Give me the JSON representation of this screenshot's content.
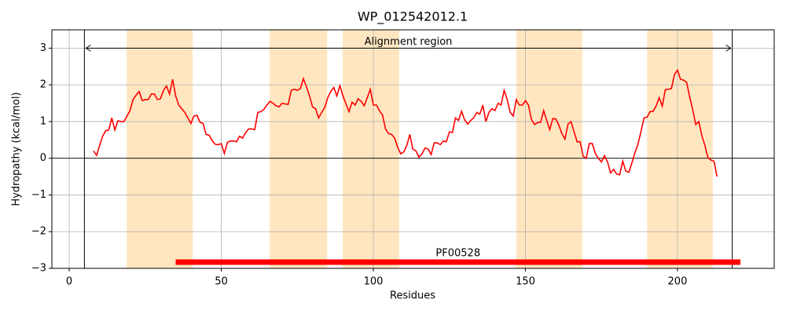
{
  "chart_data": {
    "type": "line",
    "title": "WP_012542012.1",
    "xlabel": "Residues",
    "ylabel": "Hydropathy (kcal/mol)",
    "xlim": [
      -5.7,
      231.8
    ],
    "ylim": [
      -3,
      3.5
    ],
    "xticks": [
      0,
      50,
      100,
      150,
      200
    ],
    "yticks": [
      {
        "value": -3,
        "label": "−3"
      },
      {
        "value": -2,
        "label": "−2"
      },
      {
        "value": -1,
        "label": "−1"
      },
      0,
      1,
      2,
      3
    ],
    "grid": true,
    "hline": 0,
    "regions": [
      [
        18.9,
        40.6
      ],
      [
        65.9,
        84.8
      ],
      [
        89.9,
        108.5
      ],
      [
        147,
        168.7
      ],
      [
        190,
        211.6
      ]
    ],
    "region_color": "#ffe6c0",
    "vlines": [
      5,
      218
    ],
    "alignment": {
      "text": "Alignment region",
      "x": [
        5,
        218
      ],
      "y": 3
    },
    "domain": {
      "label": "PF00528",
      "start": 35,
      "end": 220.7,
      "y": -2.83,
      "color": "#ff0000"
    },
    "x": [
      8,
      9,
      10,
      11,
      12,
      13,
      14,
      15,
      16,
      17,
      18,
      19,
      20,
      21,
      22,
      23,
      24,
      25,
      26,
      27,
      28,
      29,
      30,
      31,
      32,
      33,
      34,
      35,
      36,
      37,
      38,
      39,
      40,
      41,
      42,
      43,
      44,
      45,
      46,
      47,
      48,
      49,
      50,
      51,
      52,
      53,
      54,
      55,
      56,
      57,
      58,
      59,
      60,
      61,
      62,
      63,
      64,
      65,
      66,
      67,
      68,
      69,
      70,
      71,
      72,
      73,
      74,
      75,
      76,
      77,
      78,
      79,
      80,
      81,
      82,
      83,
      84,
      85,
      86,
      87,
      88,
      89,
      90,
      91,
      92,
      93,
      94,
      95,
      96,
      97,
      98,
      99,
      100,
      101,
      102,
      103,
      104,
      105,
      106,
      107,
      108,
      109,
      110,
      111,
      112,
      113,
      114,
      115,
      116,
      117,
      118,
      119,
      120,
      121,
      122,
      123,
      124,
      125,
      126,
      127,
      128,
      129,
      130,
      131,
      132,
      133,
      134,
      135,
      136,
      137,
      138,
      139,
      140,
      141,
      142,
      143,
      144,
      145,
      146,
      147,
      148,
      149,
      150,
      151,
      152,
      153,
      154,
      155,
      156,
      157,
      158,
      159,
      160,
      161,
      162,
      163,
      164,
      165,
      166,
      167,
      168,
      169,
      170,
      171,
      172,
      173,
      174,
      175,
      176,
      177,
      178,
      179,
      180,
      181,
      182,
      183,
      184,
      185,
      186,
      187,
      188,
      189,
      190,
      191,
      192,
      193,
      194,
      195,
      196,
      197,
      198,
      199,
      200,
      201,
      202,
      203,
      204,
      205,
      206,
      207,
      208,
      209,
      210,
      211,
      212,
      213
    ],
    "series": [
      {
        "color": "#ff0000",
        "values": [
          0.2,
          0.08,
          0.35,
          0.6,
          0.75,
          0.77,
          1.1,
          0.77,
          1.02,
          1.0,
          1.0,
          1.15,
          1.3,
          1.6,
          1.72,
          1.82,
          1.57,
          1.6,
          1.6,
          1.75,
          1.75,
          1.6,
          1.62,
          1.85,
          1.97,
          1.75,
          2.15,
          1.7,
          1.45,
          1.35,
          1.25,
          1.1,
          0.95,
          1.15,
          1.17,
          0.98,
          0.95,
          0.65,
          0.63,
          0.48,
          0.38,
          0.37,
          0.4,
          0.13,
          0.43,
          0.47,
          0.47,
          0.45,
          0.6,
          0.55,
          0.7,
          0.8,
          0.8,
          0.78,
          1.25,
          1.27,
          1.33,
          1.45,
          1.55,
          1.5,
          1.43,
          1.4,
          1.5,
          1.48,
          1.47,
          1.85,
          1.88,
          1.85,
          1.9,
          2.17,
          1.95,
          1.7,
          1.4,
          1.35,
          1.1,
          1.25,
          1.38,
          1.65,
          1.82,
          1.93,
          1.7,
          1.98,
          1.7,
          1.48,
          1.27,
          1.53,
          1.45,
          1.62,
          1.55,
          1.43,
          1.65,
          1.88,
          1.45,
          1.45,
          1.3,
          1.18,
          0.8,
          0.67,
          0.65,
          0.55,
          0.3,
          0.12,
          0.17,
          0.35,
          0.65,
          0.25,
          0.2,
          0.03,
          0.12,
          0.28,
          0.25,
          0.1,
          0.42,
          0.42,
          0.37,
          0.47,
          0.45,
          0.72,
          0.7,
          1.1,
          1.03,
          1.28,
          1.05,
          0.93,
          1.03,
          1.1,
          1.25,
          1.2,
          1.45,
          1.0,
          1.25,
          1.35,
          1.3,
          1.5,
          1.45,
          1.85,
          1.6,
          1.25,
          1.15,
          1.6,
          1.45,
          1.45,
          1.57,
          1.45,
          1.05,
          0.92,
          0.97,
          0.98,
          1.3,
          1.03,
          0.78,
          1.08,
          1.07,
          0.9,
          0.67,
          0.52,
          0.93,
          1.0,
          0.72,
          0.45,
          0.45,
          0.05,
          0.0,
          0.4,
          0.4,
          0.13,
          0.0,
          -0.1,
          0.07,
          -0.1,
          -0.4,
          -0.3,
          -0.43,
          -0.45,
          -0.08,
          -0.35,
          -0.38,
          -0.13,
          0.15,
          0.38,
          0.73,
          1.1,
          1.12,
          1.27,
          1.28,
          1.43,
          1.65,
          1.42,
          1.87,
          1.88,
          1.9,
          2.28,
          2.4,
          2.15,
          2.13,
          2.07,
          1.67,
          1.33,
          0.92,
          1.0,
          0.62,
          0.35,
          0.02,
          -0.05,
          -0.08,
          -0.5
        ]
      }
    ]
  }
}
